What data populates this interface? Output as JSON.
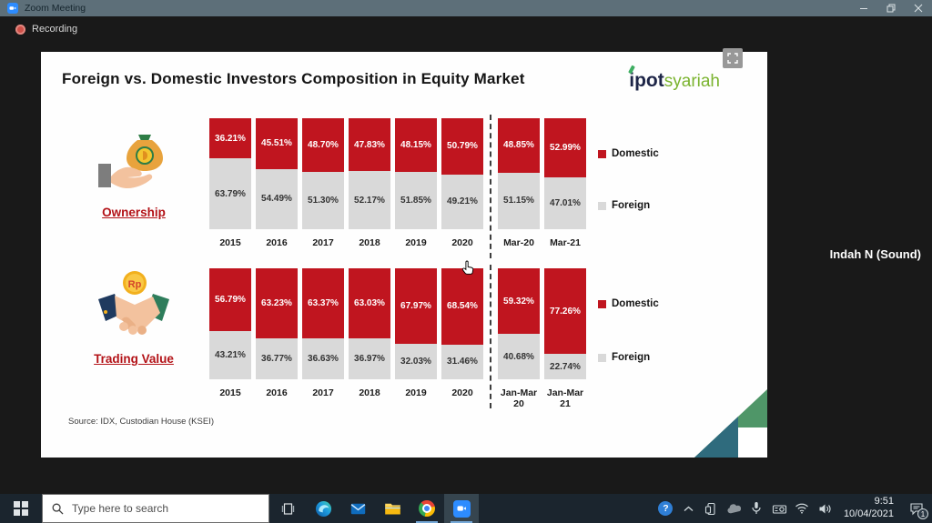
{
  "window": {
    "title": "Zoom Meeting",
    "recording_label": "Recording",
    "participant_name": "Indah N (Sound)"
  },
  "slide": {
    "title": "Foreign vs. Domestic Investors Composition in Equity Market",
    "logo_ipot": "ipot",
    "logo_syariah": "syariah",
    "source": "Source: IDX, Custodian House (KSEI)"
  },
  "chart_data": [
    {
      "type": "bar",
      "stacked": true,
      "title": "Ownership",
      "categories": [
        "2015",
        "2016",
        "2017",
        "2018",
        "2019",
        "2020",
        "Mar-20",
        "Mar-21"
      ],
      "series": [
        {
          "name": "Domestic",
          "color": "#c0151f",
          "values": [
            36.21,
            45.51,
            48.7,
            47.83,
            48.15,
            50.79,
            48.85,
            52.99
          ]
        },
        {
          "name": "Foreign",
          "color": "#d9d9d9",
          "values": [
            63.79,
            54.49,
            51.3,
            52.17,
            51.85,
            49.21,
            51.15,
            47.01
          ]
        }
      ],
      "unit": "%",
      "ylim": [
        0,
        100
      ],
      "divider_index": 6,
      "legend_position": "right",
      "grid": false
    },
    {
      "type": "bar",
      "stacked": true,
      "title": "Trading Value",
      "categories": [
        "2015",
        "2016",
        "2017",
        "2018",
        "2019",
        "2020",
        "Jan-Mar 20",
        "Jan-Mar 21"
      ],
      "series": [
        {
          "name": "Domestic",
          "color": "#c0151f",
          "values": [
            56.79,
            63.23,
            63.37,
            63.03,
            67.97,
            68.54,
            59.32,
            77.26
          ]
        },
        {
          "name": "Foreign",
          "color": "#d9d9d9",
          "values": [
            43.21,
            36.77,
            36.63,
            36.97,
            32.03,
            31.46,
            40.68,
            22.74
          ]
        }
      ],
      "unit": "%",
      "ylim": [
        0,
        100
      ],
      "divider_index": 6,
      "legend_position": "right",
      "grid": false
    }
  ],
  "taskbar": {
    "search_placeholder": "Type here to search",
    "clock_time": "9:51",
    "clock_date": "10/04/2021",
    "notification_count": "1"
  },
  "colors": {
    "domestic_red": "#c0151f",
    "foreign_gray": "#d9d9d9",
    "section_label_red": "#b31217",
    "logo_navy": "#1d2547",
    "logo_green": "#7ab32e",
    "titlebar": "#5d6f79",
    "taskbar": "#1b252e",
    "corner_green": "#4f9668",
    "corner_teal": "#2f6b7d"
  }
}
